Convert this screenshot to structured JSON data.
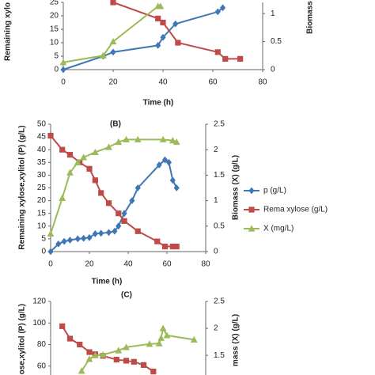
{
  "chart_data": [
    {
      "type": "line",
      "xlabel": "Time   (h)",
      "ylabel": "Remaining xylo",
      "y2label": "Biomass",
      "xlim": [
        0,
        80
      ],
      "xticks": [
        0,
        20,
        40,
        60,
        80
      ],
      "ylim": [
        0,
        25
      ],
      "yticks": [
        0,
        5,
        10,
        15,
        20,
        25
      ],
      "y2lim": [
        0,
        1.2
      ],
      "y2ticks": [
        0,
        0.5,
        1
      ],
      "series": [
        {
          "color": "#3f77b5",
          "marker": "diamond",
          "x": [
            0,
            16,
            20,
            38,
            40,
            45,
            62,
            64
          ],
          "values": [
            0,
            5,
            6.5,
            9,
            12,
            17,
            21.5,
            23
          ]
        },
        {
          "color": "#be4b48",
          "marker": "square",
          "x": [
            20,
            38,
            40,
            46,
            62,
            65,
            71
          ],
          "values": [
            25,
            19,
            17.5,
            10,
            6.5,
            4,
            4
          ]
        },
        {
          "color": "#9bbb59",
          "marker": "triangle",
          "axis": "y2",
          "x": [
            0,
            16,
            20,
            38,
            39
          ],
          "values": [
            0.13,
            0.25,
            0.5,
            1.13,
            1.13
          ]
        }
      ]
    },
    {
      "type": "line",
      "title": "(B)",
      "xlabel": "Time   (h)",
      "ylabel": "Remaining xylose,xylitol (P)  (g/L)",
      "y2label": "Biomass (X) (g/L)",
      "xlim": [
        0,
        80
      ],
      "xticks": [
        0,
        20,
        40,
        60,
        80
      ],
      "ylim": [
        0,
        50
      ],
      "yticks": [
        0,
        5,
        10,
        15,
        20,
        25,
        30,
        35,
        40,
        45,
        50
      ],
      "y2lim": [
        0,
        2.5
      ],
      "y2ticks": [
        0,
        0.5,
        1,
        1.5,
        2,
        2.5
      ],
      "series": [
        {
          "name": "p  (g/L)",
          "color": "#3f77b5",
          "marker": "diamond",
          "x": [
            0,
            4,
            7,
            10,
            14,
            17,
            20,
            23,
            26,
            30,
            33,
            35,
            38,
            42,
            45,
            56,
            59,
            61,
            63,
            65
          ],
          "values": [
            0,
            3,
            4,
            4.5,
            5,
            5.2,
            5.5,
            7,
            7.2,
            7.5,
            8,
            10,
            15,
            20,
            25,
            34,
            36,
            35,
            28,
            25
          ]
        },
        {
          "name": "Rema xylose (g/L)",
          "color": "#be4b48",
          "marker": "square",
          "x": [
            0,
            6,
            10,
            15,
            20,
            23,
            26,
            30,
            35,
            38,
            45,
            55,
            59,
            63,
            65
          ],
          "values": [
            45.5,
            40,
            38,
            35,
            32.5,
            28,
            23,
            19,
            15,
            12,
            8,
            4,
            2,
            2,
            2
          ]
        },
        {
          "name": "X  (mg/L)",
          "color": "#9bbb59",
          "marker": "triangle",
          "axis": "y2",
          "x": [
            0,
            6,
            10,
            14,
            17,
            23,
            30,
            35,
            39,
            45,
            58,
            63,
            65
          ],
          "values": [
            0.35,
            1.05,
            1.55,
            1.75,
            1.85,
            1.95,
            2.05,
            2.15,
            2.2,
            2.2,
            2.2,
            2.18,
            2.15
          ]
        }
      ]
    },
    {
      "type": "line",
      "title": "(C)",
      "ylabel": "lose,xylitol (P)  (g/L)",
      "y2label": "mass (X)  (g/L)",
      "xlim": [
        0,
        80
      ],
      "ylim": [
        40,
        120
      ],
      "yticks": [
        60,
        80,
        100,
        120
      ],
      "y2lim": [
        0.9,
        2.5
      ],
      "y2ticks": [
        1.5,
        2,
        2.5
      ],
      "series": [
        {
          "color": "#be4b48",
          "marker": "square",
          "x": [
            6,
            10,
            15,
            20,
            23,
            27,
            34,
            39,
            43,
            48,
            53
          ],
          "values": [
            97,
            85.5,
            80,
            73,
            71,
            69.5,
            66,
            65,
            64,
            61,
            55
          ]
        },
        {
          "color": "#9bbb59",
          "marker": "triangle",
          "axis": "y2",
          "x": [
            16,
            20,
            23,
            27,
            35,
            39,
            51,
            56,
            57,
            58,
            60,
            74
          ],
          "values": [
            1.21,
            1.43,
            1.5,
            1.51,
            1.59,
            1.65,
            1.71,
            1.72,
            1.82,
            2,
            1.87,
            1.79
          ]
        }
      ]
    }
  ]
}
